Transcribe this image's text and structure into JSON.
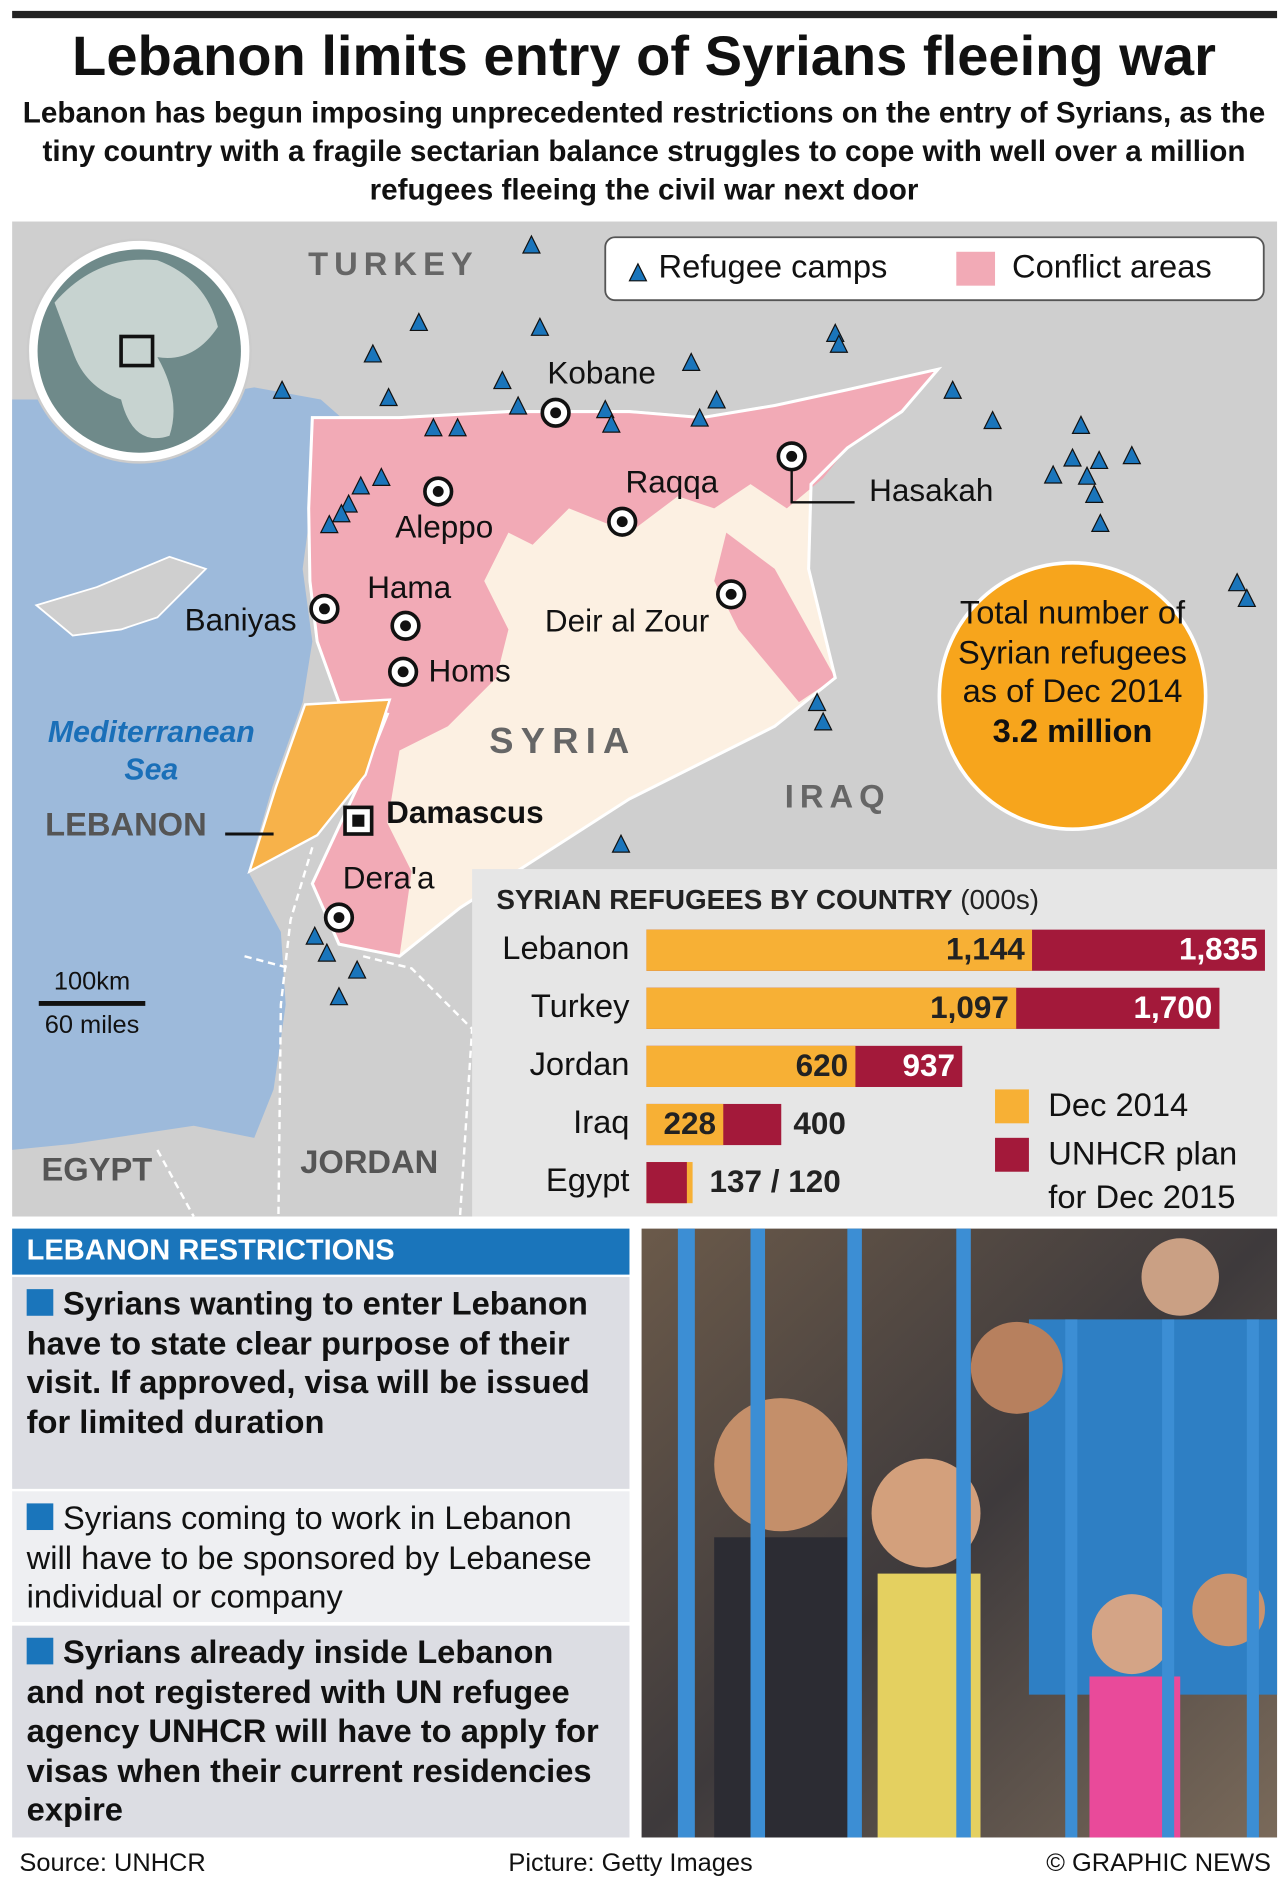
{
  "header": {
    "title": "Lebanon limits entry of Syrians fleeing war",
    "subtitle": "Lebanon has begun imposing unprecedented restrictions on the entry of Syrians, as the tiny country with a fragile sectarian balance struggles to cope with well over a million refugees fleeing the civil war next door"
  },
  "map": {
    "legend": {
      "camps": "Refugee camps",
      "conflict": "Conflict areas"
    },
    "countries": {
      "turkey": "TURKEY",
      "syria": "SYRIA",
      "iraq": "IRAQ",
      "lebanon": "LEBANON",
      "jordan": "JORDAN",
      "egypt": "EGYPT"
    },
    "sea": "Mediterranean Sea",
    "cities": [
      "Kobane",
      "Raqqa",
      "Hasakah",
      "Aleppo",
      "Hama",
      "Baniyas",
      "Deir al Zour",
      "Homs",
      "Damascus",
      "Dera'a"
    ],
    "scale": {
      "km": "100km",
      "miles": "60 miles"
    }
  },
  "callout": {
    "text": "Total number of Syrian refugees as of Dec 2014",
    "value": "3.2 million"
  },
  "chart_data": {
    "type": "bar",
    "title": "SYRIAN REFUGEES BY COUNTRY",
    "unit": "(000s)",
    "categories": [
      "Lebanon",
      "Turkey",
      "Jordan",
      "Iraq",
      "Egypt"
    ],
    "series": [
      {
        "name": "Dec 2014",
        "color": "#f7b035",
        "values": [
          1144,
          1097,
          620,
          228,
          137
        ],
        "value_labels": [
          "1,144",
          "1,097",
          "620",
          "228",
          null
        ]
      },
      {
        "name": "UNHCR plan for Dec 2015",
        "color": "#a3193a",
        "values": [
          1835,
          1700,
          937,
          400,
          120
        ],
        "value_labels": [
          "1,835",
          "1,700",
          "937",
          "400",
          null
        ]
      }
    ],
    "annotations": [
      {
        "category": "Egypt",
        "text": "137 / 120"
      }
    ]
  },
  "restrictions": {
    "title": "LEBANON RESTRICTIONS",
    "items": [
      "Syrians wanting to enter Lebanon have to state clear purpose of their visit. If approved, visa will be issued for limited duration",
      "Syrians coming to work in Lebanon will have to be sponsored by Lebanese individual or company",
      "Syrians already inside Lebanon and not registered with UN refugee agency UNHCR will have to apply for visas when their current residencies expire"
    ]
  },
  "footer": {
    "source": "Source: UNHCR",
    "picture": "Picture: Getty Images",
    "credit": "© GRAPHIC NEWS"
  }
}
